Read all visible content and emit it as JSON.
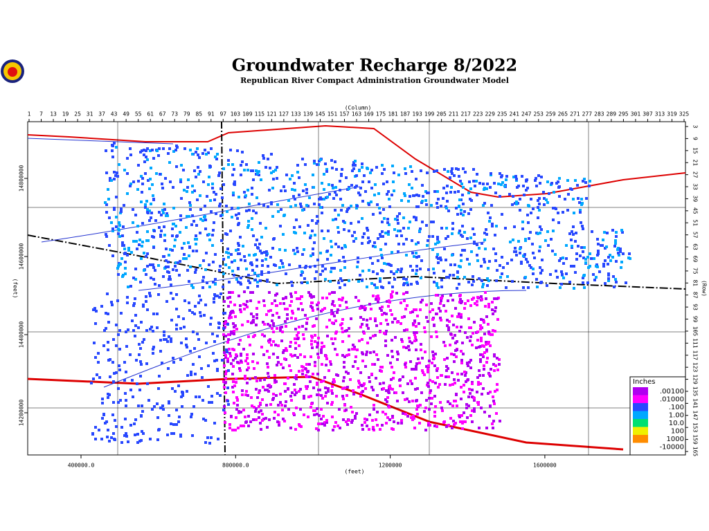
{
  "map": {
    "title": "Groundwater Recharge 8/2022",
    "subtitle": "Republican River Compact Administration Groundwater Model",
    "column_title": "(Column)",
    "row_title": "(Row)",
    "x_title": "(feet)",
    "y_title": "(feet)",
    "columns": [
      1,
      7,
      13,
      19,
      25,
      31,
      37,
      43,
      49,
      55,
      61,
      67,
      73,
      79,
      85,
      91,
      97,
      103,
      109,
      115,
      121,
      127,
      133,
      139,
      145,
      151,
      157,
      163,
      169,
      175,
      181,
      187,
      193,
      199,
      205,
      211,
      217,
      223,
      229,
      235,
      241,
      247,
      253,
      259,
      265,
      271,
      277,
      283,
      289,
      295,
      301,
      307,
      313,
      319,
      325
    ],
    "rows": [
      3,
      9,
      15,
      21,
      27,
      33,
      39,
      45,
      51,
      57,
      63,
      69,
      75,
      81,
      87,
      93,
      99,
      105,
      111,
      117,
      123,
      129,
      135,
      141,
      147,
      153,
      159,
      165
    ],
    "xticks": [
      "400000.0",
      "800000.0",
      "1200000",
      "1600000"
    ],
    "yticks": [
      "14800000",
      "14600000",
      "14400000",
      "14200000"
    ],
    "legend": {
      "title": "Inches",
      "items": [
        {
          "label": ".00100",
          "color": "#b000f0"
        },
        {
          "label": ".01000",
          "color": "#ff00ff"
        },
        {
          "label": ".100",
          "color": "#2848ff"
        },
        {
          "label": "1.00",
          "color": "#00a8ff"
        },
        {
          "label": "10.0",
          "color": "#00e070"
        },
        {
          "label": "100",
          "color": "#f0f000"
        },
        {
          "label": "1000",
          "color": "#ff8c00"
        },
        {
          "label": "-10000",
          "color": "#ffffff"
        }
      ]
    }
  }
}
